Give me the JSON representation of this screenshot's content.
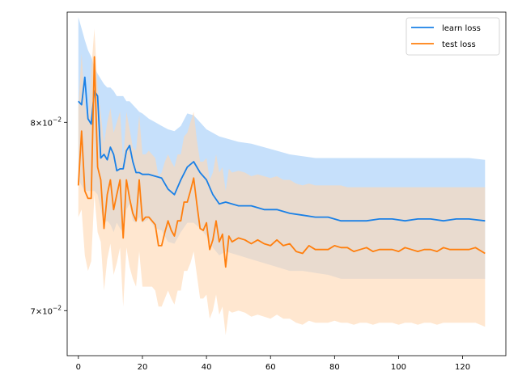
{
  "chart_data": {
    "type": "line",
    "title": "",
    "xlabel": "",
    "ylabel": "",
    "yscale": "log",
    "xlim": [
      -3.5,
      133.5
    ],
    "ylim": [
      0.0678,
      0.0865
    ],
    "xticks": [
      0,
      20,
      40,
      60,
      80,
      100,
      120
    ],
    "yticks": [
      {
        "value": 0.07,
        "mantissa": "7",
        "base": "10",
        "exp": "−2"
      },
      {
        "value": 0.08,
        "mantissa": "8",
        "base": "10",
        "exp": "−2"
      }
    ],
    "grid": false,
    "legend": {
      "position": "top-right"
    },
    "colors": {
      "learn_line": "#1a80e6",
      "learn_band": "#c6e0fb",
      "test_line": "#ff7f0e",
      "test_band": "#ffd8b3"
    },
    "series": [
      {
        "name": "learn loss",
        "color": "#1a80e6",
        "band_color": "#c6e0fb",
        "x": [
          0,
          1,
          2,
          3,
          4,
          5,
          6,
          7,
          8,
          9,
          10,
          11,
          12,
          13,
          14,
          15,
          16,
          17,
          18,
          19,
          20,
          22,
          24,
          26,
          28,
          30,
          32,
          34,
          36,
          38,
          40,
          42,
          44,
          46,
          50,
          54,
          58,
          62,
          66,
          70,
          74,
          78,
          82,
          86,
          90,
          94,
          98,
          102,
          106,
          110,
          114,
          118,
          122,
          127
        ],
        "mean": [
          0.0812,
          0.081,
          0.0826,
          0.0802,
          0.0799,
          0.0818,
          0.0815,
          0.078,
          0.0782,
          0.0779,
          0.0786,
          0.0782,
          0.0773,
          0.0774,
          0.0774,
          0.0784,
          0.0787,
          0.0778,
          0.0772,
          0.0772,
          0.0771,
          0.0771,
          0.077,
          0.0769,
          0.0763,
          0.076,
          0.0768,
          0.0775,
          0.0778,
          0.0772,
          0.0768,
          0.076,
          0.0755,
          0.0756,
          0.0754,
          0.0754,
          0.0752,
          0.0752,
          0.075,
          0.0749,
          0.0748,
          0.0748,
          0.0746,
          0.0746,
          0.0746,
          0.0747,
          0.0747,
          0.0746,
          0.0747,
          0.0747,
          0.0746,
          0.0747,
          0.0747,
          0.0746
        ],
        "upper": [
          0.0862,
          0.0855,
          0.0848,
          0.0842,
          0.0838,
          0.0832,
          0.0828,
          0.0825,
          0.0822,
          0.082,
          0.082,
          0.0818,
          0.0815,
          0.0815,
          0.0815,
          0.0812,
          0.0812,
          0.081,
          0.0808,
          0.0806,
          0.0805,
          0.0802,
          0.08,
          0.0798,
          0.0796,
          0.0795,
          0.0798,
          0.0805,
          0.0804,
          0.08,
          0.0796,
          0.0794,
          0.0792,
          0.0791,
          0.0789,
          0.0788,
          0.0786,
          0.0784,
          0.0782,
          0.0781,
          0.078,
          0.078,
          0.078,
          0.078,
          0.078,
          0.078,
          0.078,
          0.078,
          0.078,
          0.078,
          0.078,
          0.078,
          0.078,
          0.0779
        ],
        "lower": [
          0.0768,
          0.0765,
          0.0762,
          0.0762,
          0.0762,
          0.0762,
          0.076,
          0.0752,
          0.0745,
          0.0746,
          0.0744,
          0.074,
          0.0745,
          0.0742,
          0.074,
          0.0752,
          0.0755,
          0.0746,
          0.0745,
          0.0748,
          0.0745,
          0.0747,
          0.0742,
          0.0741,
          0.0735,
          0.0734,
          0.074,
          0.0745,
          0.0745,
          0.0742,
          0.0738,
          0.0732,
          0.0728,
          0.073,
          0.0728,
          0.0726,
          0.0724,
          0.0722,
          0.072,
          0.072,
          0.0719,
          0.0718,
          0.0716,
          0.0716,
          0.0716,
          0.0716,
          0.0716,
          0.0716,
          0.0716,
          0.0716,
          0.0716,
          0.0716,
          0.0716,
          0.0716
        ]
      },
      {
        "name": "test loss",
        "color": "#ff7f0e",
        "band_color": "#ffd8b3",
        "x": [
          0,
          1,
          2,
          3,
          4,
          5,
          6,
          7,
          8,
          9,
          10,
          11,
          12,
          13,
          14,
          15,
          16,
          17,
          18,
          19,
          20,
          21,
          22,
          23,
          24,
          25,
          26,
          27,
          28,
          29,
          30,
          31,
          32,
          33,
          34,
          35,
          36,
          37,
          38,
          39,
          40,
          41,
          42,
          43,
          44,
          45,
          46,
          47,
          48,
          50,
          52,
          54,
          56,
          58,
          60,
          62,
          64,
          66,
          68,
          70,
          72,
          74,
          76,
          78,
          80,
          82,
          84,
          86,
          88,
          90,
          92,
          94,
          96,
          98,
          100,
          102,
          104,
          106,
          108,
          110,
          112,
          114,
          116,
          118,
          120,
          122,
          124,
          127
        ],
        "mean": [
          0.0765,
          0.0795,
          0.0762,
          0.0758,
          0.0758,
          0.0838,
          0.0775,
          0.0768,
          0.0742,
          0.076,
          0.0768,
          0.0752,
          0.076,
          0.0768,
          0.0737,
          0.0768,
          0.0758,
          0.075,
          0.0746,
          0.0768,
          0.0746,
          0.0748,
          0.0748,
          0.0746,
          0.0744,
          0.0733,
          0.0733,
          0.074,
          0.0746,
          0.0741,
          0.0738,
          0.0746,
          0.0746,
          0.0756,
          0.0756,
          0.0762,
          0.0769,
          0.0755,
          0.0742,
          0.0741,
          0.0745,
          0.0731,
          0.0736,
          0.0746,
          0.0735,
          0.0739,
          0.0722,
          0.0738,
          0.0735,
          0.0737,
          0.0736,
          0.0734,
          0.0736,
          0.0734,
          0.0733,
          0.0736,
          0.0733,
          0.0734,
          0.073,
          0.0729,
          0.0733,
          0.0731,
          0.0731,
          0.0731,
          0.0733,
          0.0732,
          0.0732,
          0.073,
          0.0731,
          0.0732,
          0.073,
          0.0731,
          0.0731,
          0.0731,
          0.073,
          0.0732,
          0.0731,
          0.073,
          0.0731,
          0.0731,
          0.073,
          0.0732,
          0.0731,
          0.0731,
          0.0731,
          0.0731,
          0.0732,
          0.0729
        ],
        "upper": [
          0.0808,
          0.084,
          0.081,
          0.08,
          0.083,
          0.0855,
          0.082,
          0.0805,
          0.0788,
          0.08,
          0.0808,
          0.0794,
          0.08,
          0.0806,
          0.0778,
          0.0806,
          0.0796,
          0.0786,
          0.0784,
          0.0804,
          0.0782,
          0.0782,
          0.0784,
          0.0782,
          0.078,
          0.077,
          0.0772,
          0.0778,
          0.0782,
          0.0778,
          0.0775,
          0.0782,
          0.0782,
          0.0792,
          0.0794,
          0.08,
          0.0806,
          0.079,
          0.0778,
          0.0778,
          0.078,
          0.0768,
          0.0772,
          0.0782,
          0.0772,
          0.0775,
          0.0762,
          0.0774,
          0.0772,
          0.0773,
          0.0772,
          0.077,
          0.0771,
          0.077,
          0.0769,
          0.077,
          0.0768,
          0.0768,
          0.0766,
          0.0765,
          0.0766,
          0.0765,
          0.0765,
          0.0765,
          0.0765,
          0.0765,
          0.0764,
          0.0764,
          0.0764,
          0.0764,
          0.0764,
          0.0764,
          0.0764,
          0.0764,
          0.0764,
          0.0764,
          0.0764,
          0.0764,
          0.0764,
          0.0764,
          0.0764,
          0.0764,
          0.0764,
          0.0764,
          0.0764,
          0.0764,
          0.0764,
          0.0764
        ],
        "lower": [
          0.0748,
          0.0752,
          0.0728,
          0.072,
          0.0725,
          0.076,
          0.074,
          0.0735,
          0.071,
          0.0726,
          0.0734,
          0.0718,
          0.0724,
          0.0732,
          0.0702,
          0.0732,
          0.0722,
          0.0716,
          0.0712,
          0.073,
          0.0712,
          0.0712,
          0.0712,
          0.0712,
          0.071,
          0.0702,
          0.0702,
          0.0706,
          0.071,
          0.0706,
          0.0703,
          0.071,
          0.071,
          0.072,
          0.072,
          0.0724,
          0.073,
          0.0718,
          0.0706,
          0.0706,
          0.0708,
          0.0696,
          0.07,
          0.0708,
          0.0698,
          0.0702,
          0.0688,
          0.07,
          0.0699,
          0.07,
          0.0699,
          0.0697,
          0.0698,
          0.0697,
          0.0696,
          0.0698,
          0.0696,
          0.0696,
          0.0694,
          0.0693,
          0.0695,
          0.0694,
          0.0694,
          0.0694,
          0.0695,
          0.0694,
          0.0694,
          0.0693,
          0.0694,
          0.0694,
          0.0693,
          0.0694,
          0.0694,
          0.0694,
          0.0693,
          0.0694,
          0.0694,
          0.0693,
          0.0694,
          0.0694,
          0.0693,
          0.0694,
          0.0694,
          0.0694,
          0.0694,
          0.0694,
          0.0694,
          0.0692
        ]
      }
    ]
  }
}
